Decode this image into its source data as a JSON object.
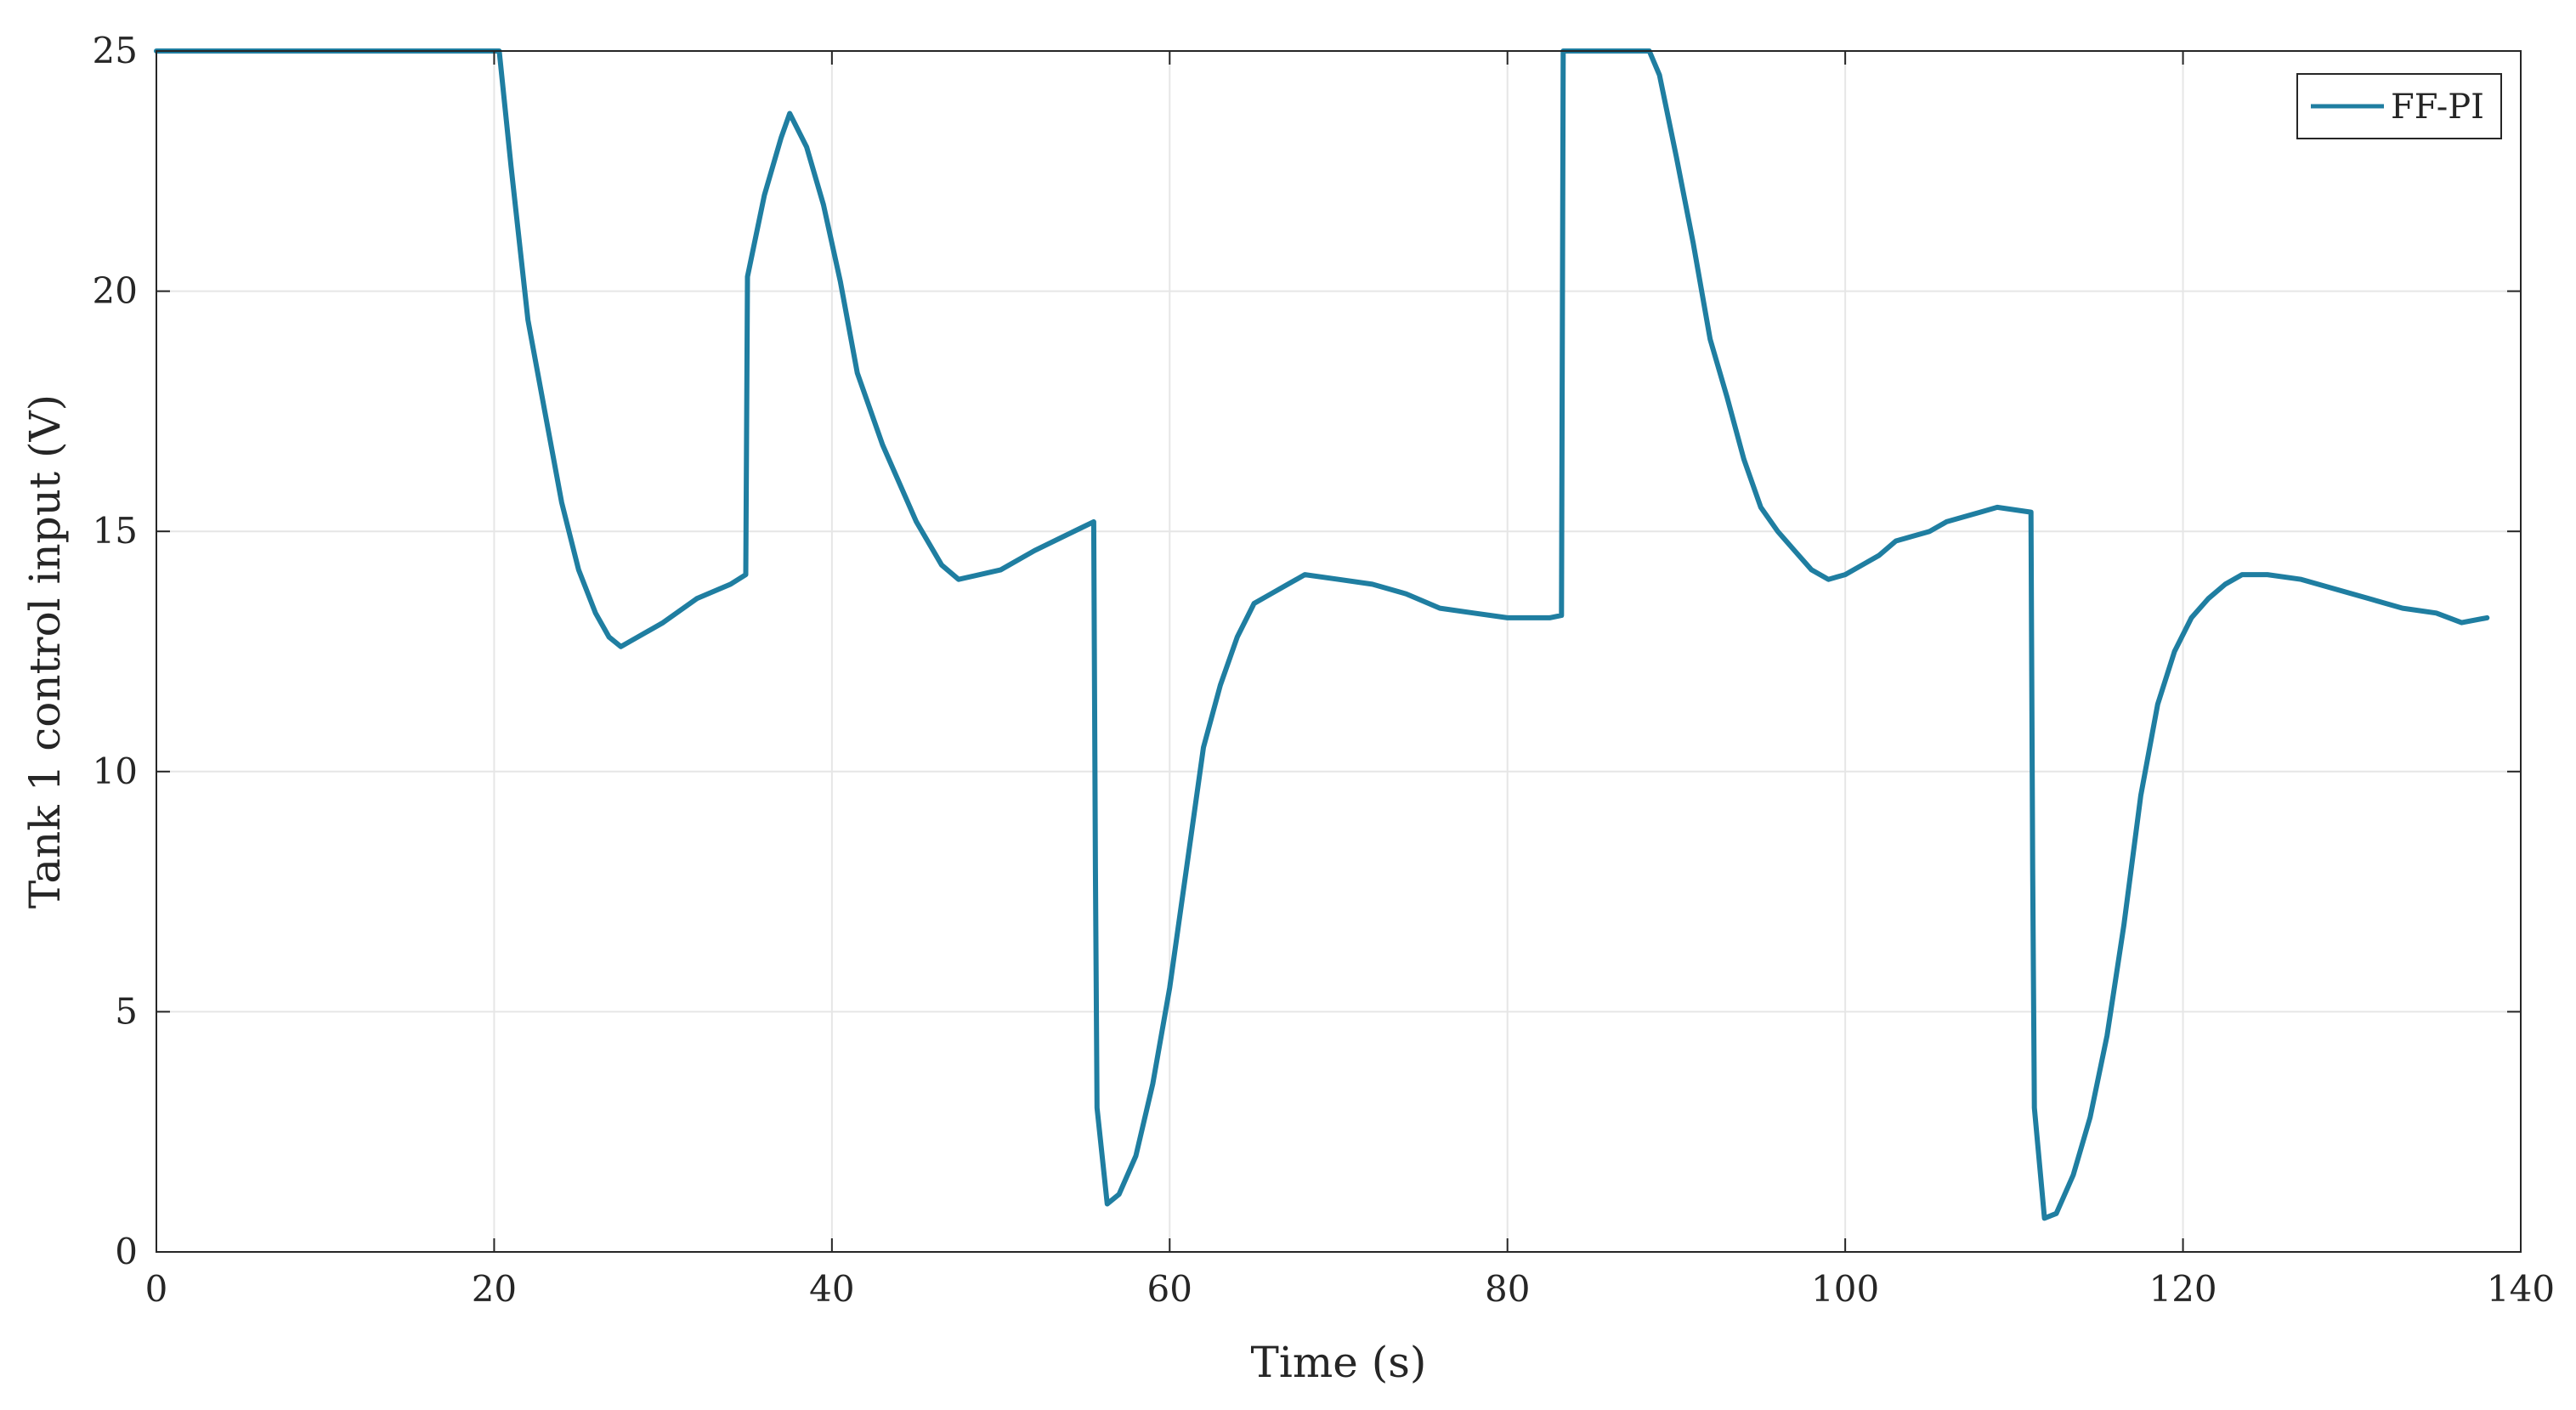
{
  "chart_data": {
    "type": "line",
    "title": "",
    "xlabel": "Time (s)",
    "ylabel": "Tank 1 control input (V)",
    "xlim": [
      0,
      140
    ],
    "ylim": [
      0,
      25
    ],
    "xticks": [
      0,
      20,
      40,
      60,
      80,
      100,
      120,
      140
    ],
    "yticks": [
      0,
      5,
      10,
      15,
      20,
      25
    ],
    "grid": true,
    "legend_position": "top-right",
    "colors": {
      "series": "#1f7ea1",
      "grid": "#e6e6e6",
      "axes": "#262626"
    },
    "series": [
      {
        "name": "FF-PI",
        "x": [
          0,
          20.3,
          21,
          22,
          23,
          24,
          25,
          26,
          26.8,
          27.5,
          28,
          30,
          32,
          34,
          34.9,
          35,
          36,
          37,
          37.5,
          38.5,
          39.5,
          40.5,
          41.5,
          43,
          45,
          46.5,
          47.5,
          50,
          52,
          55.5,
          55.6,
          55.7,
          56.3,
          57,
          58,
          59,
          60,
          61,
          62,
          63,
          64,
          65,
          66,
          67,
          68,
          70,
          72,
          74,
          76,
          78,
          80,
          82.5,
          83.2,
          83.3,
          84,
          86,
          88.4,
          89,
          90,
          91,
          92,
          93,
          94,
          95,
          96,
          97,
          98,
          99,
          100,
          101,
          102,
          103,
          104,
          105,
          106,
          107,
          108,
          109,
          111,
          111.1,
          111.2,
          111.8,
          112.5,
          113.5,
          114.5,
          115.5,
          116.5,
          117.5,
          118.5,
          119.5,
          120.5,
          121.5,
          122.5,
          123.5,
          125,
          127,
          129,
          131,
          133,
          135,
          136.5,
          138
        ],
        "y": [
          25,
          25,
          22.6,
          19.4,
          17.5,
          15.6,
          14.2,
          13.3,
          12.8,
          12.6,
          12.7,
          13.1,
          13.6,
          13.9,
          14.1,
          20.3,
          22,
          23.2,
          23.7,
          23,
          21.8,
          20.2,
          18.3,
          16.8,
          15.2,
          14.3,
          14,
          14.2,
          14.6,
          15.2,
          8,
          3,
          1,
          1.2,
          2,
          3.5,
          5.5,
          8,
          10.5,
          11.8,
          12.8,
          13.5,
          13.7,
          13.9,
          14.1,
          14,
          13.9,
          13.7,
          13.4,
          13.3,
          13.2,
          13.2,
          13.25,
          25,
          25,
          25,
          25,
          24.5,
          22.8,
          21,
          19,
          17.8,
          16.5,
          15.5,
          15,
          14.6,
          14.2,
          14,
          14.1,
          14.3,
          14.5,
          14.8,
          14.9,
          15,
          15.2,
          15.3,
          15.4,
          15.5,
          15.4,
          8,
          3,
          0.7,
          0.8,
          1.6,
          2.8,
          4.5,
          6.8,
          9.5,
          11.4,
          12.5,
          13.2,
          13.6,
          13.9,
          14.1,
          14.1,
          14,
          13.8,
          13.6,
          13.4,
          13.3,
          13.1,
          13.2
        ]
      }
    ]
  }
}
